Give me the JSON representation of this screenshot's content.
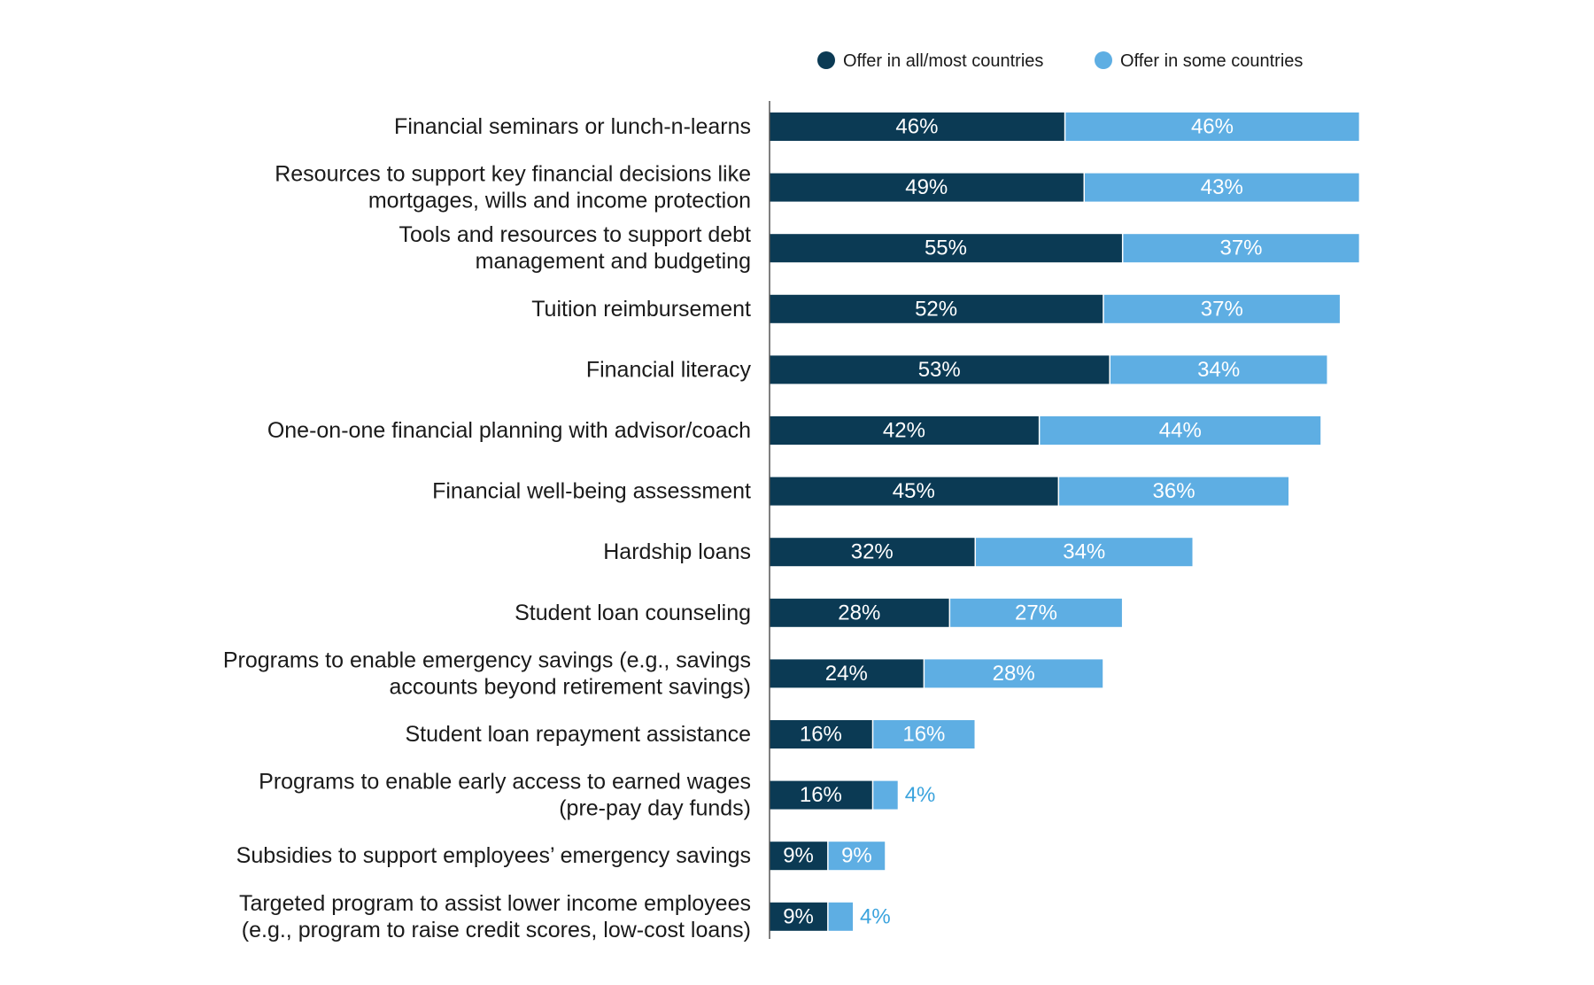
{
  "colors": {
    "dark": "#0b3a54",
    "light": "#5eaee3",
    "outside_label": "#3aa3dd",
    "axis": "#555555",
    "text": "#1a1a1a"
  },
  "legend": {
    "items": [
      {
        "label": "Offer in all/most countries",
        "color": "#0b3a54"
      },
      {
        "label": "Offer in some countries",
        "color": "#5eaee3"
      }
    ]
  },
  "chart_data": {
    "type": "bar",
    "orientation": "horizontal",
    "stacked": true,
    "title": "",
    "xlabel": "",
    "ylabel": "",
    "value_suffix": "%",
    "xlim": [
      0,
      100
    ],
    "grid": false,
    "legend_position": "top-right",
    "categories": [
      [
        "Financial seminars or lunch-n-learns"
      ],
      [
        "Resources to support key financial decisions like",
        "mortgages, wills and income protection"
      ],
      [
        "Tools and resources to support debt",
        "management and budgeting"
      ],
      [
        "Tuition reimbursement"
      ],
      [
        "Financial literacy"
      ],
      [
        "One-on-one financial planning with advisor/coach"
      ],
      [
        "Financial well-being assessment"
      ],
      [
        "Hardship loans"
      ],
      [
        "Student loan counseling"
      ],
      [
        "Programs to enable emergency savings (e.g., savings",
        "accounts beyond retirement savings)"
      ],
      [
        "Student loan repayment assistance"
      ],
      [
        "Programs to enable early access to earned wages",
        "(pre-pay day funds)"
      ],
      [
        "Subsidies to support employees’ emergency savings"
      ],
      [
        "Targeted program to assist lower income employees",
        "(e.g., program to raise credit scores, low-cost loans)"
      ]
    ],
    "series": [
      {
        "name": "Offer in all/most countries",
        "values": [
          46,
          49,
          55,
          52,
          53,
          42,
          45,
          32,
          28,
          24,
          16,
          16,
          9,
          9
        ]
      },
      {
        "name": "Offer in some countries",
        "values": [
          46,
          43,
          37,
          37,
          34,
          44,
          36,
          34,
          27,
          28,
          16,
          4,
          9,
          4
        ]
      }
    ]
  }
}
